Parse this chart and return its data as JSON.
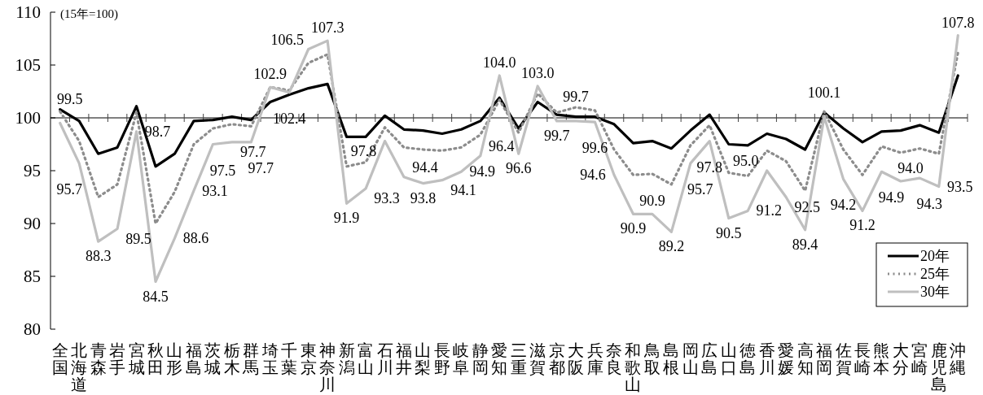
{
  "chart_data": {
    "type": "line",
    "categories": [
      "全国",
      "北海道",
      "青森",
      "岩手",
      "宮城",
      "秋田",
      "山形",
      "福島",
      "茨城",
      "栃木",
      "群馬",
      "埼玉",
      "千葉",
      "東京",
      "神奈川",
      "新潟",
      "富山",
      "石川",
      "福井",
      "山梨",
      "長野",
      "岐阜",
      "静岡",
      "愛知",
      "三重",
      "滋賀",
      "京都",
      "大阪",
      "兵庫",
      "奈良",
      "和歌山",
      "鳥取",
      "島根",
      "岡山",
      "広島",
      "山口",
      "徳島",
      "香川",
      "愛媛",
      "高知",
      "福岡",
      "佐賀",
      "長崎",
      "熊本",
      "大分",
      "宮崎",
      "鹿児島",
      "沖縄"
    ],
    "series": [
      {
        "name": "20年",
        "color": "#000000",
        "line_style": "solid",
        "values": [
          100.8,
          99.7,
          96.6,
          97.2,
          101.1,
          95.4,
          96.6,
          99.7,
          99.8,
          100.1,
          99.8,
          101.5,
          102.2,
          102.8,
          103.2,
          98.2,
          98.2,
          100.2,
          98.9,
          98.8,
          98.5,
          98.9,
          99.7,
          101.9,
          99.0,
          101.5,
          100.3,
          100.1,
          100.1,
          99.4,
          97.6,
          97.8,
          97.1,
          98.8,
          100.3,
          97.5,
          97.4,
          98.5,
          98.0,
          97.0,
          100.5,
          99.0,
          97.7,
          98.7,
          98.8,
          99.3,
          98.6,
          104.0
        ]
      },
      {
        "name": "25年",
        "color": "#8c8c8c",
        "line_style": "dotted",
        "values": [
          100.6,
          97.8,
          92.5,
          93.7,
          100.5,
          90.0,
          93.0,
          97.5,
          99.0,
          99.4,
          99.2,
          102.9,
          102.6,
          105.2,
          106.0,
          95.4,
          95.8,
          99.1,
          97.2,
          97.0,
          96.9,
          97.2,
          98.4,
          101.7,
          98.6,
          102.3,
          100.5,
          101.0,
          100.7,
          97.0,
          94.6,
          94.7,
          93.7,
          97.4,
          99.3,
          94.8,
          94.5,
          96.9,
          95.9,
          93.1,
          100.6,
          97.0,
          94.6,
          97.3,
          96.7,
          97.1,
          96.6,
          106.2
        ]
      },
      {
        "name": "30年",
        "color": "#bfbfbf",
        "line_style": "solid",
        "value_labels": [
          "99.5",
          "95.7",
          "88.3",
          "89.5",
          "98.7",
          "84.5",
          "88.6",
          "93.1",
          "97.5",
          "97.7",
          "97.7",
          "102.9",
          "102.4",
          "106.5",
          "107.3",
          "91.9",
          "93.3",
          "97.8",
          "94.4",
          "93.8",
          "94.1",
          "94.9",
          "96.4",
          "104.0",
          "96.6",
          "103.0",
          "99.7",
          "99.7",
          "99.6",
          "94.6",
          "90.9",
          "90.9",
          "89.2",
          "95.7",
          "97.8",
          "90.5",
          "91.2",
          "95.0",
          "92.5",
          "89.4",
          "100.1",
          "94.2",
          "91.2",
          "94.9",
          "94.0",
          "94.3",
          "93.5",
          "107.8"
        ],
        "values": [
          99.5,
          95.7,
          88.3,
          89.5,
          98.7,
          84.5,
          88.6,
          93.1,
          97.5,
          97.7,
          97.7,
          102.9,
          102.4,
          106.5,
          107.3,
          91.9,
          93.3,
          97.8,
          94.4,
          93.8,
          94.1,
          94.9,
          96.4,
          104.0,
          96.6,
          103.0,
          99.7,
          99.7,
          99.6,
          94.6,
          90.9,
          90.9,
          89.2,
          95.7,
          97.8,
          90.5,
          91.2,
          95.0,
          92.5,
          89.4,
          100.1,
          94.2,
          91.2,
          94.9,
          94.0,
          94.3,
          93.5,
          107.8
        ]
      }
    ],
    "ylim": [
      80,
      110
    ],
    "yticks": [
      80,
      85,
      90,
      95,
      100,
      105,
      110
    ],
    "ref_lines": [
      {
        "axis": "y",
        "value": 100,
        "color": "#000000"
      }
    ],
    "legend": "bottom right",
    "marker": "none",
    "annotations": [
      "(15年=100)"
    ]
  }
}
